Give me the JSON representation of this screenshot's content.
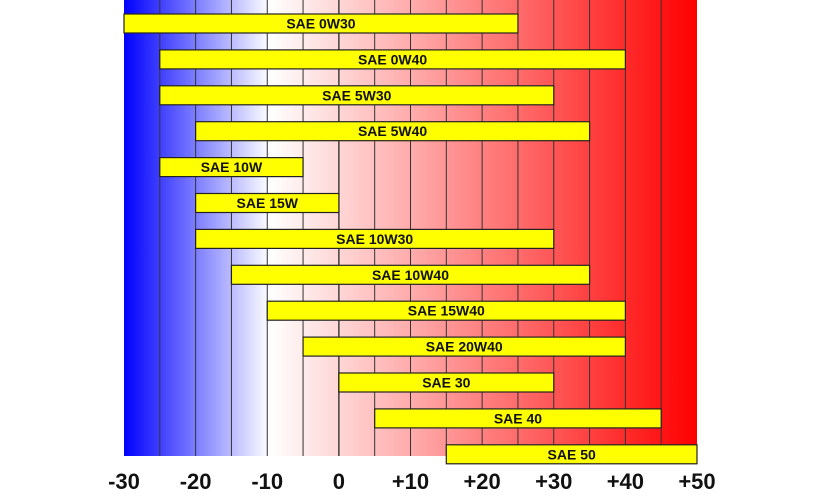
{
  "chart_data": {
    "type": "bar",
    "orientation": "horizontal-range",
    "title": "",
    "xlabel": "",
    "ylabel": "",
    "xlim": [
      -30,
      50
    ],
    "grid": true,
    "x_ticks": [
      -30,
      -20,
      -10,
      0,
      10,
      20,
      30,
      40,
      50
    ],
    "x_tick_labels": [
      "-30",
      "-20",
      "-10",
      "0",
      "+10",
      "+20",
      "+30",
      "+40",
      "+50"
    ],
    "categories": [
      "SAE 0W30",
      "SAE 0W40",
      "SAE 5W30",
      "SAE 5W40",
      "SAE 10W",
      "SAE 15W",
      "SAE 10W30",
      "SAE 10W40",
      "SAE 15W40",
      "SAE 20W40",
      "SAE 30",
      "SAE 40",
      "SAE 50"
    ],
    "ranges": [
      [
        -30,
        25
      ],
      [
        -25,
        40
      ],
      [
        -25,
        30
      ],
      [
        -20,
        35
      ],
      [
        -25,
        -5
      ],
      [
        -20,
        0
      ],
      [
        -20,
        30
      ],
      [
        -15,
        35
      ],
      [
        -10,
        40
      ],
      [
        -5,
        40
      ],
      [
        0,
        30
      ],
      [
        5,
        45
      ],
      [
        15,
        50
      ]
    ],
    "colors": {
      "bar_fill": "#ffff00",
      "bar_stroke": "#222222",
      "cold": "#0000ff",
      "neutral": "#ffffff",
      "hot": "#ff0000",
      "gridline": "#333333"
    }
  }
}
